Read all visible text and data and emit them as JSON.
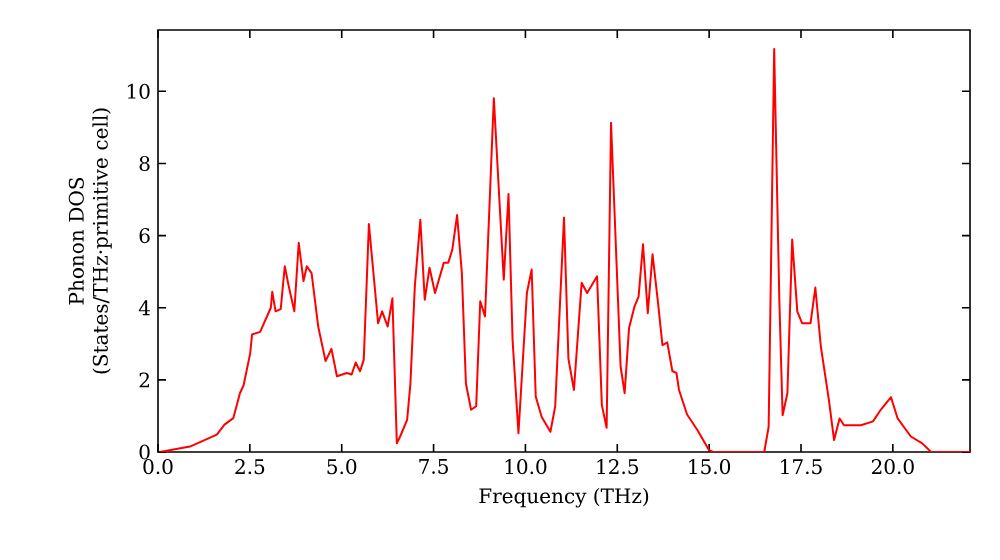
{
  "chart_data": {
    "type": "line",
    "xlabel": "Frequency (THz)",
    "ylabel": "Phonon DOS (States/THz·primitive cell)",
    "xlim": [
      0,
      22.1
    ],
    "ylim": [
      0,
      11.7
    ],
    "xticks": [
      {
        "value": 0,
        "label": "0.0"
      },
      {
        "value": 2.5,
        "label": "2.5"
      },
      {
        "value": 5,
        "label": "5.0"
      },
      {
        "value": 7.5,
        "label": "7.5"
      },
      {
        "value": 10,
        "label": "10.0"
      },
      {
        "value": 12.5,
        "label": "12.5"
      },
      {
        "value": 15,
        "label": "15.0"
      },
      {
        "value": 17.5,
        "label": "17.5"
      },
      {
        "value": 20,
        "label": "20.0"
      }
    ],
    "yticks": [
      0,
      2,
      4,
      6,
      8,
      10
    ],
    "marker": "none",
    "line_style": "solid",
    "series": [
      {
        "color": "#ff0000",
        "x": [
          0.05,
          0.87,
          1.6,
          1.81,
          2.05,
          2.23,
          2.33,
          2.51,
          2.56,
          2.78,
          3.07,
          3.11,
          3.2,
          3.34,
          3.45,
          3.56,
          3.71,
          3.83,
          3.96,
          4.05,
          4.18,
          4.36,
          4.56,
          4.72,
          4.87,
          5.14,
          5.27,
          5.38,
          5.5,
          5.6,
          5.74,
          5.99,
          6.1,
          6.25,
          6.38,
          6.5,
          6.59,
          6.78,
          6.87,
          6.99,
          7.14,
          7.26,
          7.39,
          7.54,
          7.78,
          7.9,
          8.01,
          8.14,
          8.27,
          8.38,
          8.52,
          8.66,
          8.77,
          8.9,
          9.14,
          9.41,
          9.54,
          9.65,
          9.81,
          10.04,
          10.17,
          10.28,
          10.44,
          10.68,
          10.81,
          11.05,
          11.17,
          11.32,
          11.53,
          11.68,
          11.95,
          12.08,
          12.21,
          12.33,
          12.59,
          12.7,
          12.82,
          12.97,
          13.08,
          13.2,
          13.33,
          13.46,
          13.6,
          13.73,
          13.86,
          14.0,
          14.11,
          14.18,
          14.4,
          14.68,
          14.99,
          15.1,
          16.5,
          16.62,
          16.77,
          16.91,
          17.0,
          17.13,
          17.26,
          17.4,
          17.53,
          17.76,
          17.89,
          18.04,
          18.26,
          18.4,
          18.55,
          18.67,
          19.13,
          19.46,
          19.67,
          19.95,
          20.13,
          20.49,
          20.8,
          21.04,
          22.1
        ],
        "values": [
          0,
          0.15,
          0.48,
          0.76,
          0.94,
          1.63,
          1.85,
          2.74,
          3.26,
          3.33,
          4.0,
          4.44,
          3.9,
          3.96,
          5.15,
          4.59,
          3.9,
          5.8,
          4.74,
          5.15,
          4.96,
          3.48,
          2.52,
          2.86,
          2.1,
          2.19,
          2.15,
          2.48,
          2.24,
          2.56,
          6.32,
          3.57,
          3.9,
          3.48,
          4.26,
          0.24,
          0.43,
          0.89,
          1.9,
          4.6,
          6.44,
          4.22,
          5.11,
          4.41,
          5.25,
          5.25,
          5.61,
          6.57,
          4.96,
          1.9,
          1.17,
          1.27,
          4.18,
          3.76,
          9.81,
          4.78,
          7.15,
          3.11,
          0.52,
          4.41,
          5.06,
          1.54,
          0.98,
          0.56,
          1.26,
          6.5,
          2.59,
          1.72,
          4.69,
          4.41,
          4.87,
          1.3,
          0.67,
          9.13,
          2.37,
          1.63,
          3.44,
          4.04,
          4.31,
          5.76,
          3.85,
          5.48,
          4.22,
          2.96,
          3.04,
          2.24,
          2.19,
          1.72,
          1.04,
          0.61,
          0.06,
          0,
          0,
          0.7,
          11.17,
          4.22,
          1.02,
          1.63,
          5.89,
          3.89,
          3.57,
          3.57,
          4.56,
          2.93,
          1.44,
          0.33,
          0.93,
          0.74,
          0.74,
          0.85,
          1.17,
          1.52,
          0.93,
          0.43,
          0.24,
          0,
          0
        ]
      }
    ]
  }
}
